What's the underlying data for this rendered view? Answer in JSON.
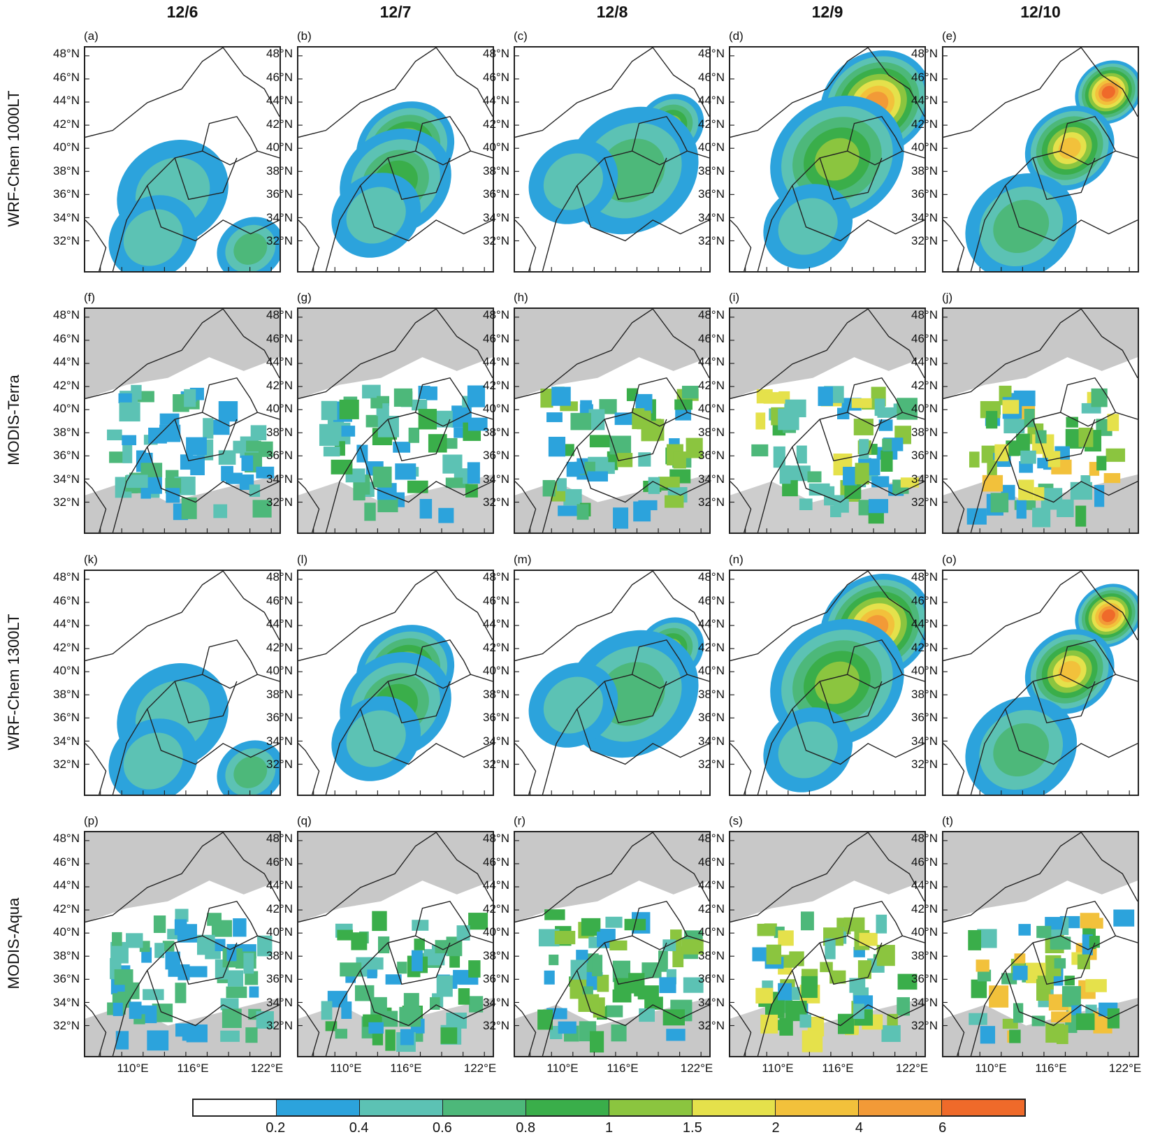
{
  "chart_data": {
    "type": "heatmap",
    "columns": [
      "12/6",
      "12/7",
      "12/8",
      "12/9",
      "12/10"
    ],
    "rows": [
      "WRF-Chem 1000LT",
      "MODIS-Terra",
      "WRF-Chem 1300LT",
      "MODIS-Aqua"
    ],
    "panel_letters": [
      [
        "(a)",
        "(b)",
        "(c)",
        "(d)",
        "(e)"
      ],
      [
        "(f)",
        "(g)",
        "(h)",
        "(i)",
        "(j)"
      ],
      [
        "(k)",
        "(l)",
        "(m)",
        "(n)",
        "(o)"
      ],
      [
        "(p)",
        "(q)",
        "(r)",
        "(s)",
        "(t)"
      ]
    ],
    "lat_ticks": [
      "48°N",
      "46°N",
      "44°N",
      "42°N",
      "40°N",
      "38°N",
      "36°N",
      "34°N",
      "32°N"
    ],
    "lon_ticks": [
      "110°E",
      "116°E",
      "122°E"
    ],
    "lat_range": [
      31,
      49
    ],
    "lon_range": [
      104,
      123
    ],
    "colorbar": {
      "levels": [
        "0.2",
        "0.4",
        "0.6",
        "0.8",
        "1",
        "1.5",
        "2",
        "4",
        "6"
      ],
      "colors": [
        "#ffffff",
        "#2ca3dc",
        "#5cc2b4",
        "#4db87a",
        "#3aae4a",
        "#8bc53f",
        "#e5e14b",
        "#f2c13b",
        "#f29a37",
        "#ef6a2a"
      ]
    },
    "missing_color": "#c8c8c8",
    "boundary_color": "#222222"
  }
}
